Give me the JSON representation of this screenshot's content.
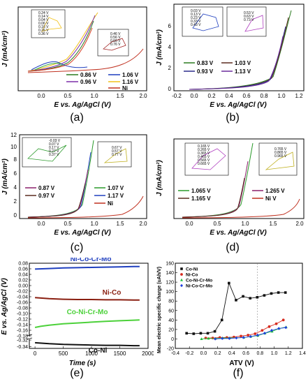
{
  "panels": {
    "a": {
      "letter": "(a)",
      "xlabel": "E vs. Ag/AgCl (V)",
      "ylabel": "J (mA/cm²)",
      "xticks": [
        "0.0",
        "0.5",
        "1.0",
        "1.5",
        "2.0"
      ],
      "legend": [
        "0.86 V",
        "1.06 V",
        "0.96 V",
        "1.16 V",
        "Ni"
      ],
      "inset_left_labels": [
        "0.24 V",
        "0.14 V",
        "0.04 V",
        "0.06 V",
        "0.16 V",
        "0.26 V",
        "0.36 V"
      ],
      "inset_left_yticks": [
        "16",
        "14",
        "12",
        "10",
        "8",
        "6",
        "4",
        "2",
        "0"
      ],
      "inset_left_xticks": [
        "-0.4",
        "-0.2",
        "0.0",
        "0.2",
        "0.4"
      ],
      "inset_right_labels": [
        "0.46 V",
        "0.56 V",
        "0.66 V",
        "0.76 V"
      ],
      "inset_right_xticks": [
        "-0.4",
        "-0.2",
        "0.0",
        "0.2",
        "0.4",
        "0.6"
      ]
    },
    "b": {
      "letter": "(b)",
      "xlabel": "E vs. Ag/AgCl (V)",
      "ylabel": "J (mA/cm²)",
      "xticks": [
        "-0.2",
        "0.0",
        "0.2",
        "0.4",
        "0.6",
        "0.8",
        "1.0",
        "1.2"
      ],
      "yticks": [
        "0",
        "2",
        "4",
        "6"
      ],
      "legend": [
        "0.83 V",
        "1.03 V",
        "0.93 V",
        "1.13 V"
      ],
      "inset_left_labels": [
        "0.03 V",
        "0.13 V",
        "0.23 V",
        "0.33 V",
        "0.43 V"
      ],
      "inset_left_yticks": [
        "0.25",
        "0.20",
        "0.15",
        "0.10",
        "0.05",
        "0.00"
      ],
      "inset_right_labels": [
        "0.53 V",
        "0.63 V",
        "0.73 V"
      ],
      "inset_right_yticks": [
        "1.4",
        "1.2",
        "1.0",
        "0.8",
        "0.6",
        "0.4",
        "0.2",
        "0.0"
      ]
    },
    "c": {
      "letter": "(c)",
      "xlabel": "E vs. Ag/AgCl (V)",
      "ylabel": "J (mA/cm²)",
      "xticks": [
        "0.0",
        "0.5",
        "1.0",
        "1.5",
        "2.0"
      ],
      "yticks": [
        "0",
        "2",
        "4",
        "6",
        "8",
        "10",
        "12"
      ],
      "legend": [
        "0.87 V",
        "1.07 V",
        "0.97 V",
        "1.17 V",
        "Ni"
      ],
      "inset_left_labels": [
        "-0.03 V",
        "0.07 V",
        "0.17 V",
        "0.27 V",
        "0.37 V"
      ],
      "inset_left_yticks": [
        "0.05",
        "0.04",
        "0.03",
        "0.02",
        "0.01",
        "0.00",
        "-0.01"
      ],
      "inset_right_labels": [
        "0.67 V",
        "0.57 V",
        "0.77 V"
      ]
    },
    "d": {
      "letter": "(d)",
      "xlabel": "E vs. Ag/AgCl (V)",
      "ylabel": "J (mA/cm²)",
      "xticks": [
        "0.0",
        "0.5",
        "1.0",
        "1.5",
        "2.0"
      ],
      "legend": [
        "1.065 V",
        "1.265 V",
        "1.165 V",
        "Ni V"
      ],
      "inset_left_labels": [
        "0.165 V",
        "0.265 V",
        "0.365 V",
        "0.465 V",
        "0.565 V",
        "0.665 V"
      ],
      "inset_left_yticks": [
        "0.4",
        "0.3",
        "0.2",
        "0.1",
        "0.0"
      ],
      "inset_right_labels": [
        "0.765 V",
        "0.865 V",
        "0.965 V"
      ],
      "inset_right_yticks": [
        "3.0",
        "2.5",
        "2.0",
        "1.5",
        "1.0",
        "0.5"
      ]
    },
    "e": {
      "letter": "(e)",
      "xlabel": "Time (s)",
      "ylabel": "E vs. Ag/AgCl (V)"
    },
    "f": {
      "letter": "(f)",
      "xlabel": "ATV (V)",
      "ylabel": "Mean electric specific charge (uAh/V)"
    }
  },
  "chart_data": [
    {
      "type": "line",
      "panel": "e",
      "xlabel": "Time (s)",
      "ylabel": "E vs. Ag/AgCl (V)",
      "xlim": [
        -100,
        2000
      ],
      "xticks": [
        0,
        500,
        1000,
        1500,
        2000
      ],
      "yticks_upper": [
        0.08,
        0.06,
        0.04,
        0.02,
        0.0,
        -0.02,
        -0.04,
        -0.06,
        -0.08,
        -0.1,
        -0.12,
        -0.14,
        -0.16,
        -0.18
      ],
      "yticks_lower": [
        -0.32,
        -0.34
      ],
      "axis_break": true,
      "series": [
        {
          "name": "Ni-Co-Cr-Mo",
          "color": "#1f3fbf",
          "x": [
            0,
            250,
            500,
            750,
            1000,
            1250,
            1500,
            1750,
            1850
          ],
          "y": [
            0.059,
            0.061,
            0.063,
            0.064,
            0.065,
            0.066,
            0.067,
            0.068,
            0.068
          ]
        },
        {
          "name": "Ni-Co",
          "color": "#8a1f11",
          "x": [
            0,
            250,
            500,
            750,
            1000,
            1250,
            1500,
            1750,
            1850
          ],
          "y": [
            -0.043,
            -0.047,
            -0.049,
            -0.05,
            -0.05,
            -0.051,
            -0.051,
            -0.052,
            -0.052
          ]
        },
        {
          "name": "Co-Ni-Cr-Mo",
          "color": "#4cd13a",
          "x": [
            0,
            100,
            250,
            500,
            750,
            1000,
            1250,
            1500,
            1750,
            1850
          ],
          "y": [
            -0.15,
            -0.146,
            -0.142,
            -0.137,
            -0.134,
            -0.131,
            -0.128,
            -0.126,
            -0.124,
            -0.123
          ]
        },
        {
          "name": "Co-Ni",
          "color": "#111111",
          "x": [
            0,
            250,
            500,
            750,
            1000,
            1250,
            1500,
            1750,
            1850
          ],
          "y": [
            -0.328,
            -0.331,
            -0.333,
            -0.334,
            -0.335,
            -0.336,
            -0.336,
            -0.337,
            -0.337
          ]
        }
      ]
    },
    {
      "type": "scatter",
      "panel": "f",
      "xlabel": "ATV (V)",
      "ylabel": "Mean electric specific charge (uAh/V)",
      "xlim": [
        -0.4,
        1.4
      ],
      "ylim": [
        -20,
        160
      ],
      "xticks": [
        -0.4,
        -0.2,
        0.0,
        0.2,
        0.4,
        0.6,
        0.8,
        1.0,
        1.2,
        1.4
      ],
      "yticks": [
        -20,
        0,
        20,
        40,
        60,
        80,
        100,
        120,
        140,
        160
      ],
      "legend_position": "top-left",
      "series": [
        {
          "name": "Co-Ni",
          "color": "#111111",
          "marker": "square",
          "x": [
            -0.24,
            -0.14,
            -0.04,
            0.06,
            0.16,
            0.26,
            0.36,
            0.46,
            0.56,
            0.66,
            0.76,
            0.86,
            0.96,
            1.06,
            1.16
          ],
          "y": [
            12,
            11,
            12,
            12,
            16,
            40,
            118,
            82,
            90,
            86,
            88,
            92,
            96,
            98,
            98
          ]
        },
        {
          "name": "Ni-Co",
          "color": "#d62a1e",
          "marker": "circle",
          "x": [
            0.03,
            0.13,
            0.23,
            0.33,
            0.43,
            0.53,
            0.63,
            0.73,
            0.83,
            0.93,
            1.03,
            1.13
          ],
          "y": [
            2,
            2,
            3,
            3,
            4,
            6,
            8,
            11,
            18,
            26,
            32,
            40
          ]
        },
        {
          "name": "Co-Ni-Cr-Mo",
          "color": "#1fbf3a",
          "marker": "triangle",
          "x": [
            -0.03,
            0.07,
            0.17,
            0.27,
            0.37,
            0.57,
            0.67,
            0.77,
            0.87,
            0.97,
            1.07,
            1.17
          ],
          "y": [
            0,
            1,
            1,
            2,
            2,
            3,
            5,
            7,
            12,
            16,
            22,
            25
          ]
        },
        {
          "name": "Ni-Co-Cr-Mo",
          "color": "#1f3fdf",
          "marker": "diamond",
          "x": [
            0.165,
            0.265,
            0.365,
            0.465,
            0.565,
            0.665,
            0.765,
            0.865,
            0.965,
            1.065,
            1.165
          ],
          "y": [
            0,
            1,
            1,
            2,
            3,
            5,
            8,
            12,
            18,
            22,
            24
          ]
        }
      ]
    }
  ]
}
